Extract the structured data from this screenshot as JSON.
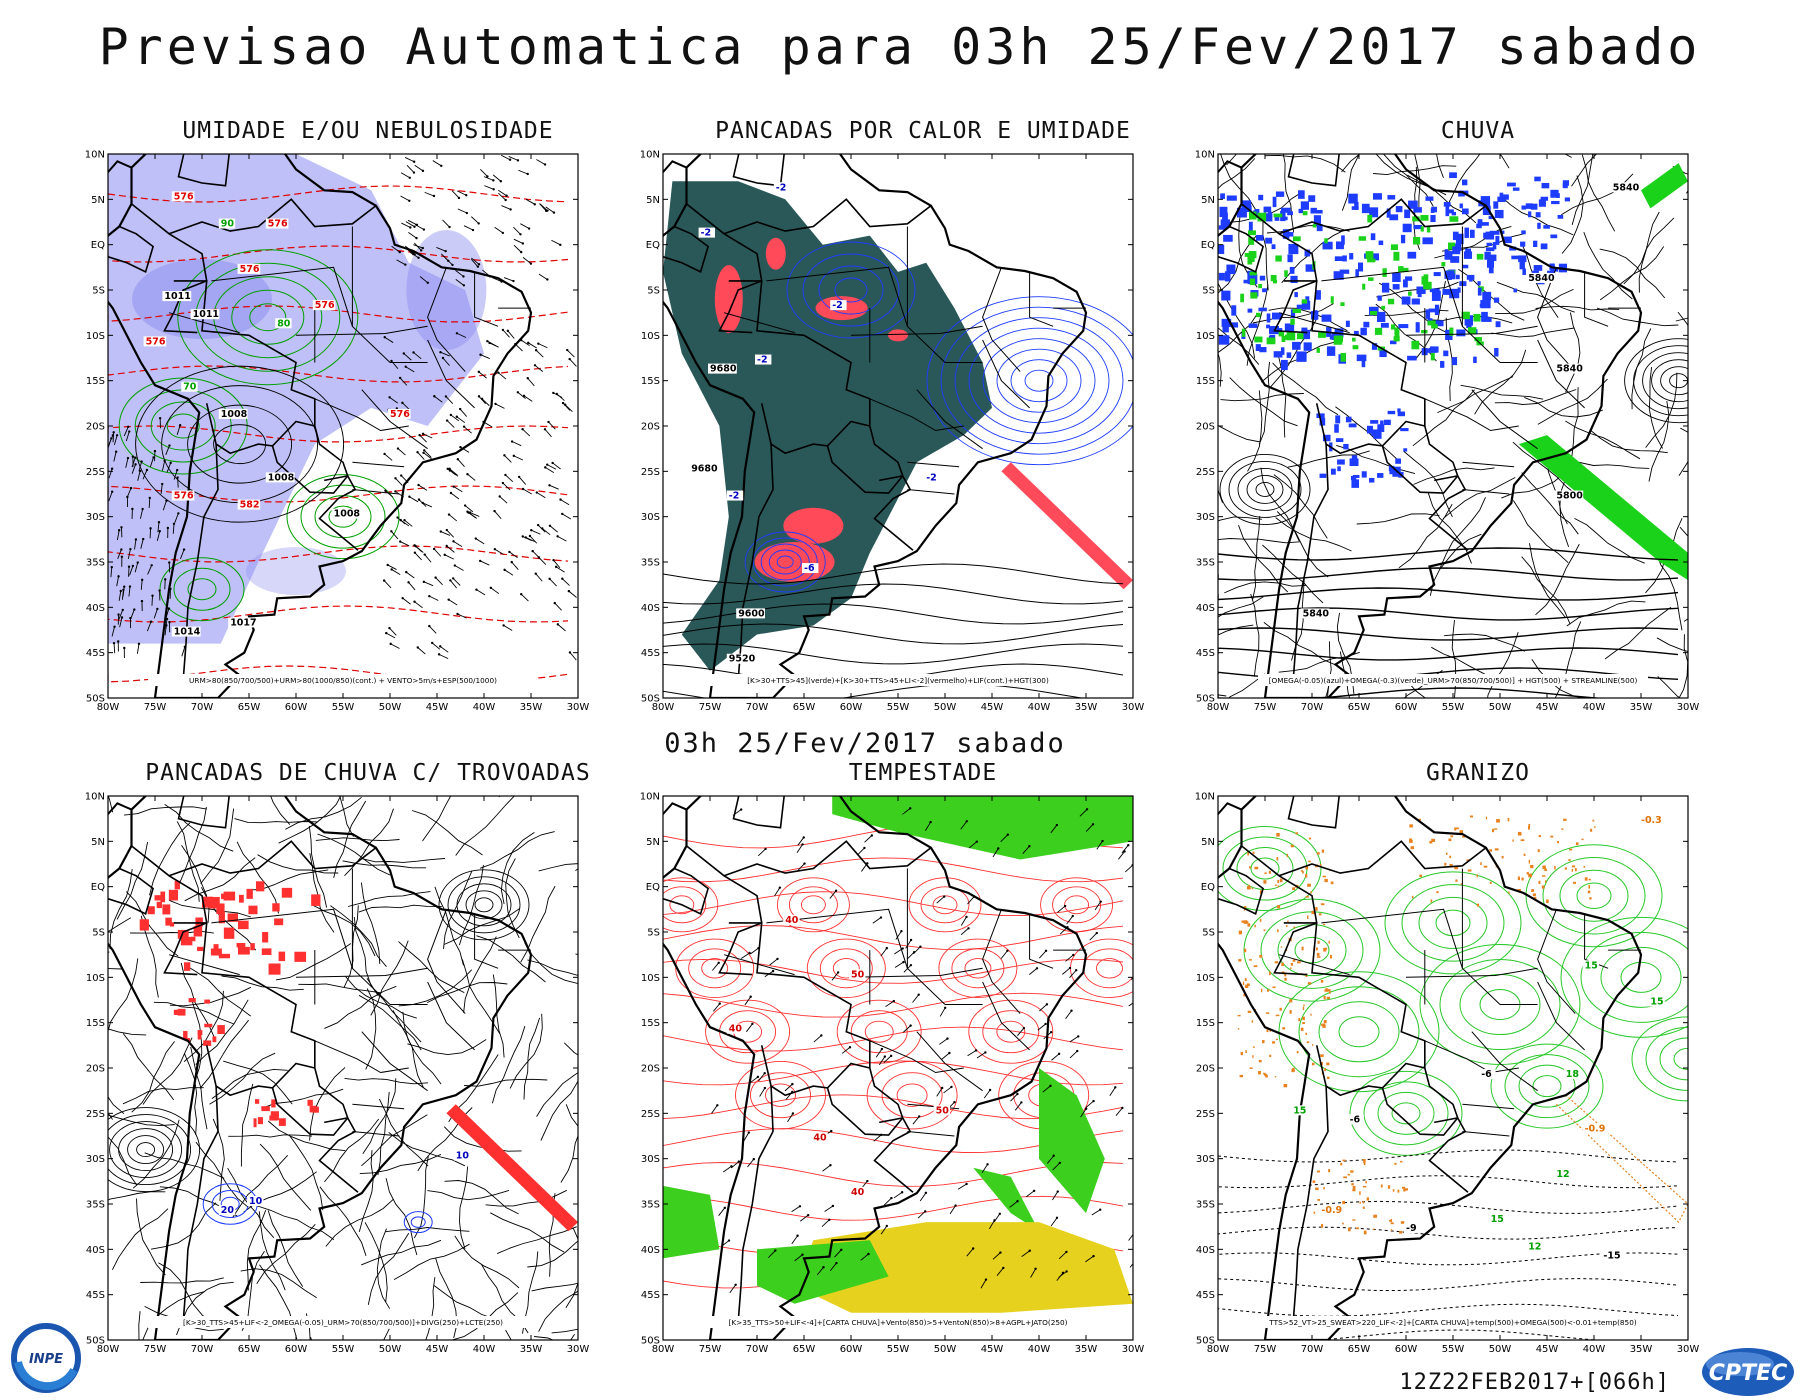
{
  "header": {
    "title": "Previsao Automatica  para 03h 25/Fev/2017 sabado",
    "mid_title": "03h 25/Fev/2017 sabado",
    "run_label": "12Z22FEB2017+[066h]"
  },
  "axes": {
    "lat_labels": [
      "10N",
      "5N",
      "EQ",
      "5S",
      "10S",
      "15S",
      "20S",
      "25S",
      "30S",
      "35S",
      "40S",
      "45S",
      "50S"
    ],
    "lon_labels": [
      "80W",
      "75W",
      "70W",
      "65W",
      "60W",
      "55W",
      "50W",
      "45W",
      "40W",
      "35W",
      "30W"
    ]
  },
  "panels": [
    {
      "title": "UMIDADE E/OU NEBULOSIDADE",
      "caption": "URM>80(850/700/500)+URM>80(1000/850)(cont.) + VENTO>5m/s+ESP(500/1000)",
      "style": "humidity",
      "labels": [
        {
          "t": "576",
          "lon": -73,
          "lat": 5,
          "c": "#e00000"
        },
        {
          "t": "576",
          "lon": -63,
          "lat": 2,
          "c": "#e00000"
        },
        {
          "t": "576",
          "lon": -66,
          "lat": -3,
          "c": "#e00000"
        },
        {
          "t": "576",
          "lon": -58,
          "lat": -7,
          "c": "#e00000"
        },
        {
          "t": "576",
          "lon": -76,
          "lat": -11,
          "c": "#e00000"
        },
        {
          "t": "576",
          "lon": -50,
          "lat": -19,
          "c": "#e00000"
        },
        {
          "t": "576",
          "lon": -73,
          "lat": -28,
          "c": "#e00000"
        },
        {
          "t": "582",
          "lon": -66,
          "lat": -29,
          "c": "#e00000"
        },
        {
          "t": "1011",
          "lon": -74,
          "lat": -6,
          "c": "#000"
        },
        {
          "t": "1011",
          "lon": -71,
          "lat": -8,
          "c": "#000"
        },
        {
          "t": "1008",
          "lon": -68,
          "lat": -19,
          "c": "#000"
        },
        {
          "t": "1008",
          "lon": -63,
          "lat": -26,
          "c": "#000"
        },
        {
          "t": "1008",
          "lon": -56,
          "lat": -30,
          "c": "#000"
        },
        {
          "t": "1014",
          "lon": -73,
          "lat": -43,
          "c": "#000"
        },
        {
          "t": "1017",
          "lon": -67,
          "lat": -42,
          "c": "#000"
        },
        {
          "t": "70",
          "lon": -72,
          "lat": -16,
          "c": "#00a000"
        },
        {
          "t": "80",
          "lon": -62,
          "lat": -9,
          "c": "#00a000"
        },
        {
          "t": "90",
          "lon": -68,
          "lat": 2,
          "c": "#00a000"
        }
      ]
    },
    {
      "title": "PANCADAS POR CALOR E UMIDADE",
      "caption": "[K>30+TTS>45](verde)+[K>30+TTS>45+LI<-2](vermelho)+LIF(cont.)+HGT(300)",
      "style": "heat",
      "labels": [
        {
          "t": "-2",
          "lon": -68,
          "lat": 6,
          "c": "#0000c0"
        },
        {
          "t": "-2",
          "lon": -76,
          "lat": 1,
          "c": "#0000c0"
        },
        {
          "t": "-2",
          "lon": -62,
          "lat": -7,
          "c": "#0000c0"
        },
        {
          "t": "-2",
          "lon": -70,
          "lat": -13,
          "c": "#0000c0"
        },
        {
          "t": "-2",
          "lon": -52,
          "lat": -26,
          "c": "#0000c0"
        },
        {
          "t": "-2",
          "lon": -73,
          "lat": -28,
          "c": "#0000c0"
        },
        {
          "t": "-6",
          "lon": -65,
          "lat": -36,
          "c": "#0000c0"
        },
        {
          "t": "9680",
          "lon": -75,
          "lat": -14,
          "c": "#000"
        },
        {
          "t": "9680",
          "lon": -77,
          "lat": -25,
          "c": "#000"
        },
        {
          "t": "9600",
          "lon": -72,
          "lat": -41,
          "c": "#000"
        },
        {
          "t": "9520",
          "lon": -73,
          "lat": -46,
          "c": "#000"
        }
      ]
    },
    {
      "title": "CHUVA",
      "caption": "[OMEGA(-0.05)(azul)+OMEGA(-0.3)(verde)_URM>70(850/700/500)] + HGT(500) + STREAMLINE(500)",
      "style": "rain",
      "labels": [
        {
          "t": "5840",
          "lon": -38,
          "lat": 6,
          "c": "#000"
        },
        {
          "t": "5840",
          "lon": -47,
          "lat": -4,
          "c": "#000"
        },
        {
          "t": "5840",
          "lon": -44,
          "lat": -14,
          "c": "#000"
        },
        {
          "t": "5840",
          "lon": -71,
          "lat": -41,
          "c": "#000"
        },
        {
          "t": "5800",
          "lon": -44,
          "lat": -28,
          "c": "#000"
        }
      ]
    },
    {
      "title": "PANCADAS DE CHUVA C/ TROVOADAS",
      "caption": "[K>30_TTS>45+LIF<-2_OMEGA(-0.05)_URM>70(850/700/500)]+DIVG(250)+LCTE(250)",
      "style": "thunder",
      "labels": [
        {
          "t": "10",
          "lon": -65,
          "lat": -35,
          "c": "#0000c0"
        },
        {
          "t": "20",
          "lon": -68,
          "lat": -36,
          "c": "#0000c0"
        },
        {
          "t": "10",
          "lon": -43,
          "lat": -30,
          "c": "#0000c0"
        }
      ]
    },
    {
      "title": "TEMPESTADE",
      "caption": "[K>35_TTS>50+LIF<-4]+[CARTA CHUVA]+Vento(850)>5+VentoN(850)>8+AGPL+JATO(250)",
      "style": "storm",
      "labels": [
        {
          "t": "40",
          "lon": -67,
          "lat": -4,
          "c": "#d00000"
        },
        {
          "t": "50",
          "lon": -60,
          "lat": -10,
          "c": "#d00000"
        },
        {
          "t": "40",
          "lon": -73,
          "lat": -16,
          "c": "#d00000"
        },
        {
          "t": "50",
          "lon": -51,
          "lat": -25,
          "c": "#d00000"
        },
        {
          "t": "40",
          "lon": -64,
          "lat": -28,
          "c": "#d00000"
        },
        {
          "t": "40",
          "lon": -60,
          "lat": -34,
          "c": "#d00000"
        }
      ]
    },
    {
      "title": "GRANIZO",
      "caption": "TTS>52_VT>25_SWEAT>220_LIF<-2]+[CARTA CHUVA]+temp(500)+OMEGA(500)<-0.01+temp(850)",
      "style": "hail",
      "labels": [
        {
          "t": "15",
          "lon": -41,
          "lat": -9,
          "c": "#00a000"
        },
        {
          "t": "15",
          "lon": -34,
          "lat": -13,
          "c": "#00a000"
        },
        {
          "t": "15",
          "lon": -72,
          "lat": -25,
          "c": "#00a000"
        },
        {
          "t": "15",
          "lon": -51,
          "lat": -37,
          "c": "#00a000"
        },
        {
          "t": "12",
          "lon": -44,
          "lat": -32,
          "c": "#00a000"
        },
        {
          "t": "12",
          "lon": -47,
          "lat": -40,
          "c": "#00a000"
        },
        {
          "t": "18",
          "lon": -43,
          "lat": -21,
          "c": "#00a000"
        },
        {
          "t": "-6",
          "lon": -52,
          "lat": -21,
          "c": "#000"
        },
        {
          "t": "-6",
          "lon": -66,
          "lat": -26,
          "c": "#000"
        },
        {
          "t": "-9",
          "lon": -60,
          "lat": -38,
          "c": "#000"
        },
        {
          "t": "-15",
          "lon": -39,
          "lat": -41,
          "c": "#000"
        },
        {
          "t": "-0.9",
          "lon": -41,
          "lat": -27,
          "c": "#e07000"
        },
        {
          "t": "-0.3",
          "lon": -35,
          "lat": 7,
          "c": "#e07000"
        },
        {
          "t": "-0.9",
          "lon": -69,
          "lat": -36,
          "c": "#e07000"
        }
      ]
    }
  ],
  "logos": {
    "inpe": "INPE",
    "cptec": "CPTEC"
  },
  "colors": {
    "coast": "#000000",
    "humidity_fill": "#8b8cf0",
    "heat_fill": "#1f4f4f",
    "heat_red": "#ff4a5a",
    "rain_blue": "#1e3cff",
    "rain_green": "#19d219",
    "storm_red": "#ff3030",
    "storm_green": "#3ccf1e",
    "storm_yellow": "#e6d21e",
    "hail_green": "#28c828",
    "hail_orange": "#e8821e"
  }
}
